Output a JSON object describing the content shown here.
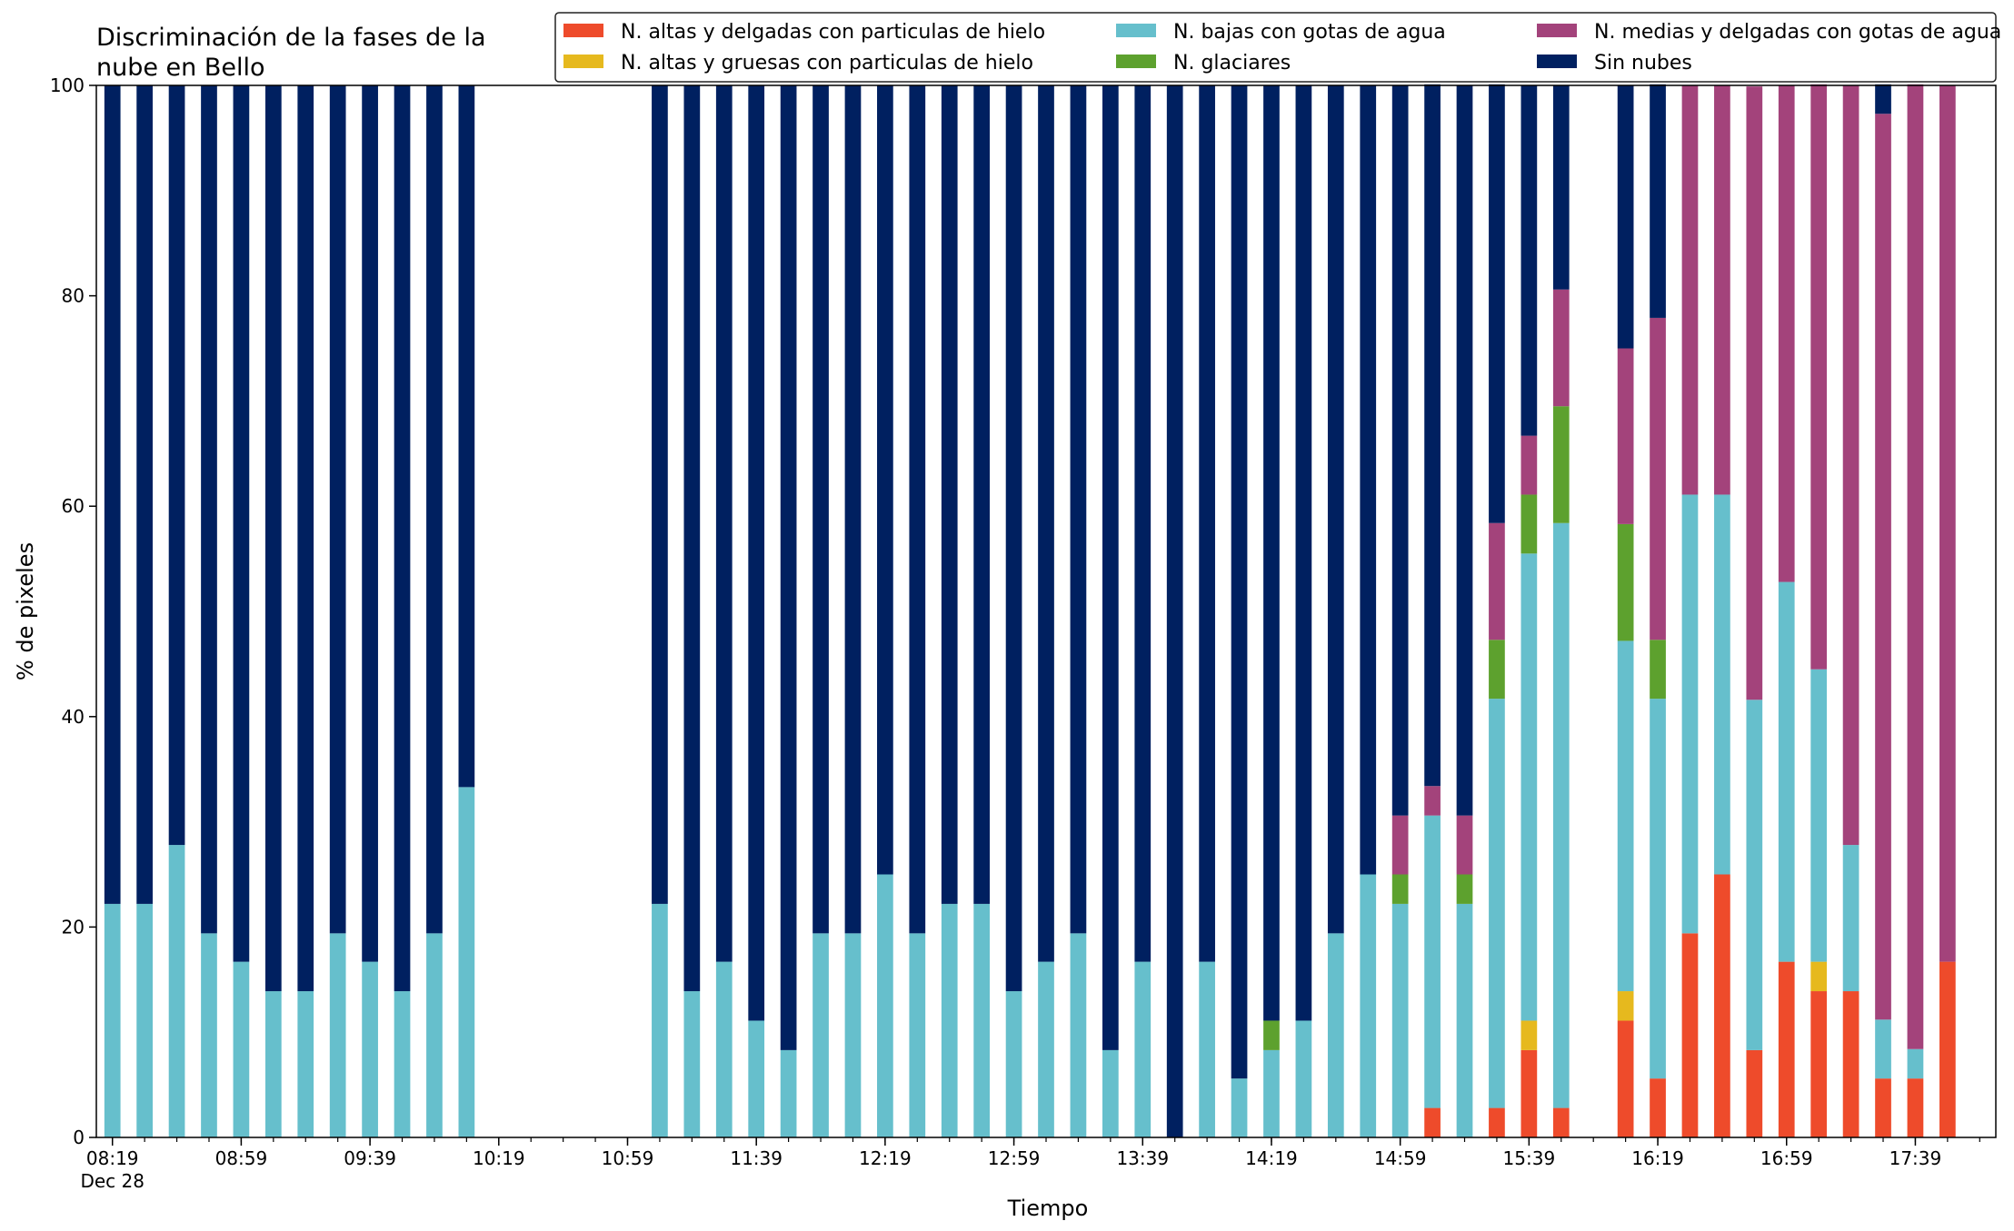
{
  "chart_data": {
    "type": "bar",
    "stacked": true,
    "title_lines": [
      "Discriminación de la fases de la",
      "nube en Bello"
    ],
    "xlabel": "Tiempo",
    "ylabel": "% de pixeles",
    "ylim": [
      0,
      100
    ],
    "yticks": [
      0,
      20,
      40,
      60,
      80,
      100
    ],
    "xtick_labels": [
      "08:19",
      "08:59",
      "09:39",
      "10:19",
      "10:59",
      "11:39",
      "12:19",
      "12:59",
      "13:39",
      "14:19",
      "14:59",
      "15:39",
      "16:19",
      "16:59",
      "17:39"
    ],
    "x_date_label": "Dec 28",
    "x_start": "08:19",
    "x_end": "17:59",
    "interval_minutes": 10,
    "x": [
      "08:19",
      "08:29",
      "08:39",
      "08:49",
      "08:59",
      "09:09",
      "09:19",
      "09:29",
      "09:39",
      "09:49",
      "09:59",
      "10:09",
      "10:19",
      "10:29",
      "10:39",
      "10:49",
      "10:59",
      "11:09",
      "11:19",
      "11:29",
      "11:39",
      "11:49",
      "11:59",
      "12:09",
      "12:19",
      "12:29",
      "12:39",
      "12:49",
      "12:59",
      "13:09",
      "13:19",
      "13:29",
      "13:39",
      "13:49",
      "13:59",
      "14:09",
      "14:19",
      "14:29",
      "14:39",
      "14:49",
      "14:59",
      "15:09",
      "15:19",
      "15:29",
      "15:39",
      "15:49",
      "15:59",
      "16:09",
      "16:19",
      "16:29",
      "16:39",
      "16:49",
      "16:59",
      "17:09",
      "17:19",
      "17:29",
      "17:39",
      "17:49"
    ],
    "legend_placement": "top-right",
    "grid": false,
    "series": [
      {
        "name": "N. altas y delgadas con particulas de hielo",
        "color": "#ee4b2b",
        "values": [
          0,
          0,
          0,
          0,
          0,
          0,
          0,
          0,
          0,
          0,
          0,
          0,
          0,
          0,
          0,
          0,
          0,
          0,
          0,
          0,
          0,
          0,
          0,
          0,
          0,
          0,
          0,
          0,
          0,
          0,
          0,
          0,
          0,
          0,
          0,
          0,
          0,
          0,
          0,
          0,
          0,
          2.8,
          0,
          2.8,
          8.3,
          2.8,
          0,
          11.1,
          5.6,
          19.4,
          25,
          8.3,
          16.7,
          13.9,
          13.9,
          5.6,
          5.6,
          16.7
        ]
      },
      {
        "name": "N. altas y gruesas con particulas de hielo",
        "color": "#e6b91e",
        "values": [
          0,
          0,
          0,
          0,
          0,
          0,
          0,
          0,
          0,
          0,
          0,
          0,
          0,
          0,
          0,
          0,
          0,
          0,
          0,
          0,
          0,
          0,
          0,
          0,
          0,
          0,
          0,
          0,
          0,
          0,
          0,
          0,
          0,
          0,
          0,
          0,
          0,
          0,
          0,
          0,
          0,
          0,
          0,
          0,
          2.8,
          0,
          0,
          2.8,
          0,
          0,
          0,
          0,
          0,
          2.8,
          0,
          0,
          0,
          0
        ]
      },
      {
        "name": "N. bajas con gotas de agua",
        "color": "#66bfcc",
        "values": [
          22.2,
          22.2,
          27.8,
          19.4,
          16.7,
          13.9,
          13.9,
          19.4,
          16.7,
          13.9,
          19.4,
          33.3,
          0,
          0,
          0,
          0,
          0,
          22.2,
          13.9,
          16.7,
          11.1,
          8.3,
          19.4,
          19.4,
          25,
          19.4,
          22.2,
          22.2,
          13.9,
          16.7,
          19.4,
          8.3,
          16.7,
          0,
          16.7,
          5.6,
          8.3,
          11.1,
          19.4,
          25,
          22.2,
          27.8,
          22.2,
          38.9,
          44.4,
          55.6,
          0,
          33.3,
          36.1,
          41.7,
          36.1,
          33.3,
          36.1,
          27.8,
          13.9,
          5.6,
          2.8,
          0
        ]
      },
      {
        "name": "N. glaciares",
        "color": "#5da12e",
        "values": [
          0,
          0,
          0,
          0,
          0,
          0,
          0,
          0,
          0,
          0,
          0,
          0,
          0,
          0,
          0,
          0,
          0,
          0,
          0,
          0,
          0,
          0,
          0,
          0,
          0,
          0,
          0,
          0,
          0,
          0,
          0,
          0,
          0,
          0,
          0,
          0,
          2.8,
          0,
          0,
          0,
          2.8,
          0,
          2.8,
          5.6,
          5.6,
          11.1,
          0,
          11.1,
          5.6,
          0,
          0,
          0,
          0,
          0,
          0,
          0,
          0,
          0
        ]
      },
      {
        "name": "N. medias y delgadas con gotas de agua",
        "color": "#a3437b",
        "values": [
          0,
          0,
          0,
          0,
          0,
          0,
          0,
          0,
          0,
          0,
          0,
          0,
          0,
          0,
          0,
          0,
          0,
          0,
          0,
          0,
          0,
          0,
          0,
          0,
          0,
          0,
          0,
          0,
          0,
          0,
          0,
          0,
          0,
          0,
          0,
          0,
          0,
          0,
          0,
          0,
          5.6,
          2.8,
          5.6,
          11.1,
          5.6,
          11.1,
          0,
          16.7,
          30.6,
          38.9,
          38.9,
          58.3,
          47.2,
          55.6,
          72.2,
          86.1,
          91.7,
          83.3
        ]
      },
      {
        "name": "Sin nubes",
        "color": "#002060",
        "values": [
          77.8,
          77.8,
          72.2,
          80.6,
          83.3,
          86.1,
          86.1,
          80.6,
          83.3,
          86.1,
          80.6,
          66.7,
          0,
          0,
          0,
          0,
          0,
          77.8,
          86.1,
          83.3,
          88.9,
          91.7,
          80.6,
          80.6,
          75,
          80.6,
          77.8,
          77.8,
          86.1,
          83.3,
          80.6,
          91.7,
          83.3,
          100,
          83.3,
          94.4,
          88.9,
          88.9,
          80.6,
          75,
          69.4,
          66.7,
          69.4,
          41.7,
          33.3,
          19.4,
          0,
          25,
          22.2,
          0,
          0,
          0,
          0,
          0,
          0,
          2.8,
          0,
          0
        ]
      }
    ]
  }
}
